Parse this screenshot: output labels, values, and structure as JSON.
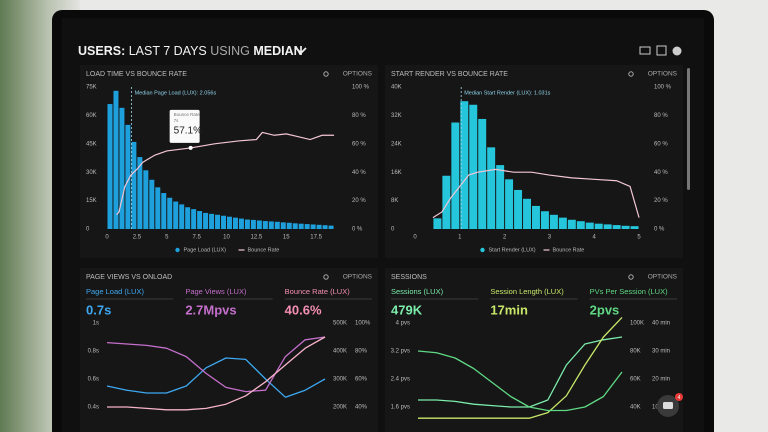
{
  "header": {
    "title_parts": [
      "USERS:",
      "LAST 7 DAYS",
      "USING",
      "MEDIAN"
    ],
    "badge": "4"
  },
  "chart_data": [
    {
      "type": "histogram",
      "title": "LOAD TIME VS BOUNCE RATE",
      "options": "OPTIONS",
      "annotation": "Median Page Load (LUX): 2.056s",
      "median": 2.056,
      "tooltip": {
        "title": "Bounce Rate",
        "x_label": "7s",
        "x": 7,
        "value": 57.1,
        "label": "57.1%"
      },
      "bins": [
        0,
        0.5,
        1,
        1.5,
        2,
        2.5,
        3,
        3.5,
        4,
        4.5,
        5,
        5.5,
        6,
        6.5,
        7,
        7.5,
        8,
        8.5,
        9,
        9.5,
        10,
        10.5,
        11,
        11.5,
        12,
        12.5,
        13,
        13.5,
        14,
        14.5,
        15,
        15.5,
        16,
        16.5,
        17,
        17.5,
        18,
        18.5,
        19
      ],
      "series": [
        {
          "name": "Page Load (LUX)",
          "color": "#1ea0dc",
          "values": [
            66000,
            73000,
            64000,
            55000,
            46000,
            38000,
            31000,
            26000,
            22000,
            19000,
            16500,
            14500,
            13000,
            11500,
            10500,
            9500,
            8500,
            8000,
            7500,
            7000,
            6500,
            6000,
            5500,
            5000,
            4800,
            4500,
            4200,
            4000,
            3800,
            3500,
            3300,
            3000,
            2800,
            2600,
            2400,
            2200,
            2000,
            1800
          ]
        },
        {
          "name": "Bounce Rate",
          "color": "#f3c6d6",
          "axis": "y2",
          "x": [
            0.8,
            1,
            1.5,
            2,
            2.5,
            3,
            4,
            5,
            7,
            9,
            11,
            12.5,
            13,
            14,
            15,
            16,
            17,
            18,
            19
          ],
          "values": [
            10,
            12,
            30,
            38,
            42,
            47,
            52,
            55,
            57.1,
            60,
            62,
            63,
            68,
            66,
            67,
            65,
            63,
            66,
            66
          ]
        }
      ],
      "xlim": [
        0,
        20
      ],
      "xticks": [
        0,
        2.5,
        5,
        7.5,
        10,
        12.5,
        15,
        17.5
      ],
      "ylim": [
        0,
        75000
      ],
      "yticks": [
        0,
        {
          "value": 15000,
          "label": "15K"
        },
        {
          "value": 30000,
          "label": "30K"
        },
        {
          "value": 45000,
          "label": "45K"
        },
        {
          "value": 60000,
          "label": "60K"
        },
        {
          "value": 75000,
          "label": "75K"
        }
      ],
      "y2lim": [
        0,
        100
      ],
      "y2ticks": [
        {
          "value": 0,
          "label": "0 %"
        },
        {
          "value": 20,
          "label": "20 %"
        },
        {
          "value": 40,
          "label": "40 %"
        },
        {
          "value": 60,
          "label": "60 %"
        },
        {
          "value": 80,
          "label": "80 %"
        },
        {
          "value": 100,
          "label": "100 %"
        }
      ]
    },
    {
      "type": "histogram",
      "title": "START RENDER VS BOUNCE RATE",
      "options": "OPTIONS",
      "annotation": "Median Start Render (LUX): 1.031s",
      "median": 1.031,
      "bins": [
        0.4,
        0.6,
        0.8,
        1,
        1.2,
        1.4,
        1.6,
        1.8,
        2,
        2.2,
        2.4,
        2.6,
        2.8,
        3,
        3.2,
        3.4,
        3.6,
        3.8,
        4,
        4.2,
        4.4,
        4.6,
        4.8,
        5
      ],
      "series": [
        {
          "name": "Start Render (LUX)",
          "color": "#25c6dc",
          "values": [
            3000,
            15000,
            30000,
            36000,
            35000,
            31000,
            23000,
            18000,
            14000,
            11000,
            8500,
            6500,
            5000,
            4000,
            3200,
            2600,
            2200,
            1800,
            1500,
            1300,
            1100,
            900,
            800
          ]
        },
        {
          "name": "Bounce Rate",
          "color": "#f3c6d6",
          "axis": "y2",
          "x": [
            0.4,
            0.6,
            0.8,
            1,
            1.2,
            1.4,
            1.8,
            2.2,
            2.6,
            3,
            3.5,
            4,
            4.5,
            4.8,
            5
          ],
          "values": [
            8,
            12,
            22,
            30,
            38,
            40,
            42,
            40,
            40,
            38,
            36,
            35,
            34,
            30,
            8
          ]
        }
      ],
      "xlim": [
        0,
        5.2
      ],
      "xticks": [
        0,
        1,
        2,
        3,
        4,
        5
      ],
      "ylim": [
        0,
        40000
      ],
      "yticks": [
        0,
        {
          "value": 8000,
          "label": "8K"
        },
        {
          "value": 16000,
          "label": "16K"
        },
        {
          "value": 24000,
          "label": "24K"
        },
        {
          "value": 32000,
          "label": "32K"
        },
        {
          "value": 40000,
          "label": "40K"
        }
      ],
      "y2lim": [
        0,
        100
      ],
      "y2ticks": [
        {
          "value": 0,
          "label": "0 %"
        },
        {
          "value": 20,
          "label": "20 %"
        },
        {
          "value": 40,
          "label": "40 %"
        },
        {
          "value": 60,
          "label": "60 %"
        },
        {
          "value": 80,
          "label": "80 %"
        },
        {
          "value": 100,
          "label": "100 %"
        }
      ]
    },
    {
      "type": "line",
      "title": "PAGE VIEWS VS ONLOAD",
      "options": "OPTIONS",
      "kpis": [
        {
          "label": "Page Load (LUX)",
          "value": "0.7s",
          "color": "#3ea8f2"
        },
        {
          "label": "Page Views (LUX)",
          "value": "2.7Mpvs",
          "color": "#c46fcb"
        },
        {
          "label": "Bounce Rate (LUX)",
          "value": "40.6%",
          "color": "#f58fb4"
        }
      ],
      "categories": [
        null,
        null,
        null,
        null,
        null,
        null,
        null,
        null,
        null,
        null,
        null,
        null
      ],
      "series": [
        {
          "name": "Page Load (LUX)",
          "color": "#3ea8f2",
          "axis": "y",
          "values": [
            0.55,
            0.52,
            0.5,
            0.5,
            0.55,
            0.68,
            0.75,
            0.74,
            0.6,
            0.47,
            0.52,
            0.6
          ]
        },
        {
          "name": "Page Views (LUX)",
          "color": "#c46fcb",
          "axis": "y2",
          "values": [
            430000,
            425000,
            420000,
            410000,
            380000,
            320000,
            270000,
            255000,
            260000,
            380000,
            440000,
            450000
          ]
        },
        {
          "name": "Bounce Rate (LUX)",
          "color": "#f7b3c9",
          "axis": "y3",
          "values": [
            40,
            40,
            39,
            38,
            38,
            39,
            42,
            48,
            58,
            70,
            82,
            90
          ]
        }
      ],
      "ylim": [
        0.3,
        1
      ],
      "yticks": [
        {
          "value": 1,
          "label": "1s"
        },
        {
          "value": 0.8,
          "label": "0.8s"
        },
        {
          "value": 0.6,
          "label": "0.6s"
        },
        {
          "value": 0.4,
          "label": "0.4s"
        }
      ],
      "y2lim": [
        150000,
        500000
      ],
      "y2ticks": [
        {
          "value": 500000,
          "label": "500K"
        },
        {
          "value": 400000,
          "label": "400K"
        },
        {
          "value": 300000,
          "label": "300K"
        },
        {
          "value": 200000,
          "label": "200K"
        }
      ],
      "y3lim": [
        30,
        100
      ],
      "y3ticks": [
        {
          "value": 100,
          "label": "100%"
        },
        {
          "value": 80,
          "label": "80%"
        },
        {
          "value": 60,
          "label": "60%"
        },
        {
          "value": 40,
          "label": "40%"
        }
      ]
    },
    {
      "type": "line",
      "title": "SESSIONS",
      "options": "OPTIONS",
      "kpis": [
        {
          "label": "Sessions (LUX)",
          "value": "479K",
          "color": "#7cecab"
        },
        {
          "label": "Session Length (LUX)",
          "value": "17min",
          "color": "#c8e86a"
        },
        {
          "label": "PVs Per Session (LUX)",
          "value": "2pvs",
          "color": "#5fd884"
        }
      ],
      "categories": [
        null,
        null,
        null,
        null,
        null,
        null,
        null,
        null,
        null,
        null,
        null,
        null
      ],
      "series": [
        {
          "name": "Sessions (LUX)",
          "color": "#7cecab",
          "axis": "y2",
          "values": [
            45000,
            45000,
            44000,
            42000,
            41000,
            40000,
            40000,
            45000,
            70000,
            85000,
            88000,
            90000
          ]
        },
        {
          "name": "Session Length (LUX)",
          "color": "#c8e86a",
          "axis": "y3",
          "values": [
            6,
            6,
            6,
            6,
            6,
            6,
            6,
            8,
            14,
            25,
            35,
            42
          ]
        },
        {
          "name": "PVs Per Session (LUX)",
          "color": "#5fd884",
          "axis": "y",
          "values": [
            3.2,
            3.15,
            3,
            2.7,
            2.3,
            1.9,
            1.6,
            1.5,
            1.5,
            1.6,
            1.9,
            2.6
          ]
        }
      ],
      "ylim": [
        1.2,
        4
      ],
      "yticks": [
        {
          "value": 4,
          "label": "4 pvs"
        },
        {
          "value": 3.2,
          "label": "3.2 pvs"
        },
        {
          "value": 2.4,
          "label": "2.4 pvs"
        },
        {
          "value": 1.6,
          "label": "1.6 pvs"
        }
      ],
      "y2lim": [
        30000,
        100000
      ],
      "y2ticks": [
        {
          "value": 100000,
          "label": "100K"
        },
        {
          "value": 80000,
          "label": "80K"
        },
        {
          "value": 60000,
          "label": "60K"
        },
        {
          "value": 40000,
          "label": "40K"
        }
      ],
      "y3lim": [
        5,
        40
      ],
      "y3ticks": [
        {
          "value": 40,
          "label": "40 min"
        },
        {
          "value": 30,
          "label": "30 min"
        },
        {
          "value": 20,
          "label": "20 min"
        },
        {
          "value": 10,
          "label": "10 min"
        }
      ]
    }
  ]
}
